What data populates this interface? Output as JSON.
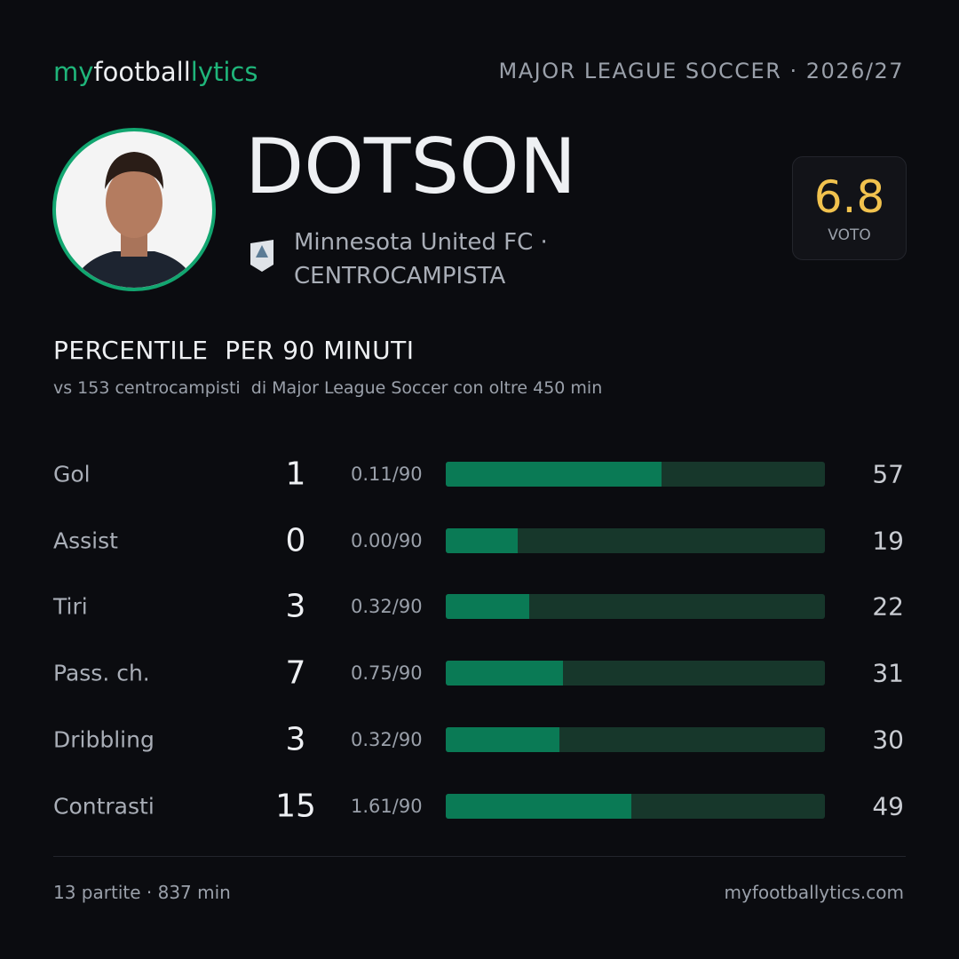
{
  "header": {
    "logo": [
      "my",
      "football",
      "lytics"
    ],
    "league": "MAJOR LEAGUE SOCCER · 2026/27"
  },
  "player": {
    "name": "DOTSON",
    "team": "Minnesota United FC ·",
    "role": "CENTROCAMPISTA",
    "rating": 6.8,
    "rating_label": "VOTO"
  },
  "section": {
    "title": "PERCENTILE  PER 90 MINUTI",
    "subtitle": "vs 153 centrocampisti  di Major League Soccer con oltre 450 min"
  },
  "stats": {
    "xlim": [
      0,
      100
    ],
    "rows": [
      {
        "label": "Gol",
        "total": 1,
        "per90": "0.11/90",
        "percentile": 57
      },
      {
        "label": "Assist",
        "total": 0,
        "per90": "0.00/90",
        "percentile": 19
      },
      {
        "label": "Tiri",
        "total": 3,
        "per90": "0.32/90",
        "percentile": 22
      },
      {
        "label": "Pass. ch.",
        "total": 7,
        "per90": "0.75/90",
        "percentile": 31
      },
      {
        "label": "Dribbling",
        "total": 3,
        "per90": "0.32/90",
        "percentile": 30
      },
      {
        "label": "Contrasti",
        "total": 15,
        "per90": "1.61/90",
        "percentile": 49
      }
    ]
  },
  "footer": {
    "left": "13 partite · 837 min",
    "right": "myfootballytics.com"
  }
}
